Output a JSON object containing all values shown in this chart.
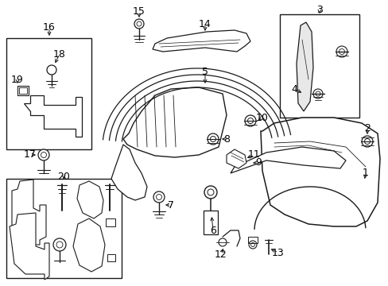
{
  "bg_color": "#ffffff",
  "line_color": "#1a1a1a",
  "fig_width": 4.89,
  "fig_height": 3.6,
  "dpi": 100,
  "font_size": 9.0
}
